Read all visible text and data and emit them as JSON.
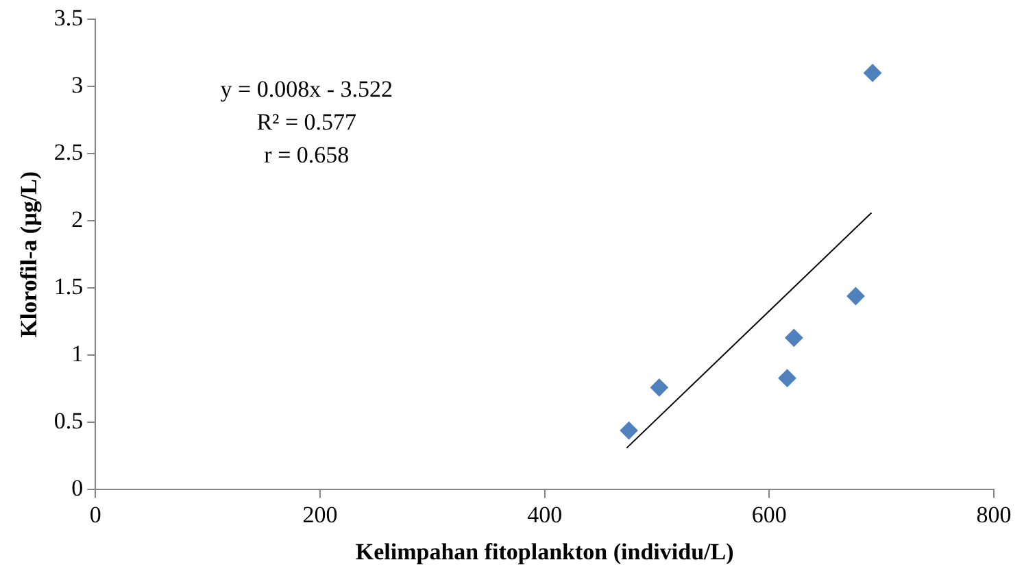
{
  "chart_data": {
    "type": "scatter",
    "xlabel": "Kelimpahan fitoplankton (individu/L)",
    "ylabel": "Klorofil-a (µg/L)",
    "annotations": [
      "y = 0.008x - 3.522",
      "R² = 0.577",
      "r = 0.658"
    ],
    "series": [
      {
        "color": "#4f81bd",
        "marker": "diamond",
        "x": [
          475,
          502,
          616,
          622,
          677,
          692
        ],
        "values": [
          0.44,
          0.76,
          0.83,
          1.13,
          1.44,
          3.1
        ]
      },
      {
        "type": "line",
        "color": "#000000",
        "marker": "none",
        "x": [
          473,
          691
        ],
        "values": [
          0.31,
          2.06
        ]
      }
    ],
    "xlim": [
      0,
      800
    ],
    "xticks": [
      0,
      200,
      400,
      600,
      800
    ],
    "ylim": [
      0,
      3.5
    ],
    "yticks": [
      0,
      0.5,
      1,
      1.5,
      2,
      2.5,
      3,
      3.5
    ],
    "grid": false,
    "legend": false
  }
}
